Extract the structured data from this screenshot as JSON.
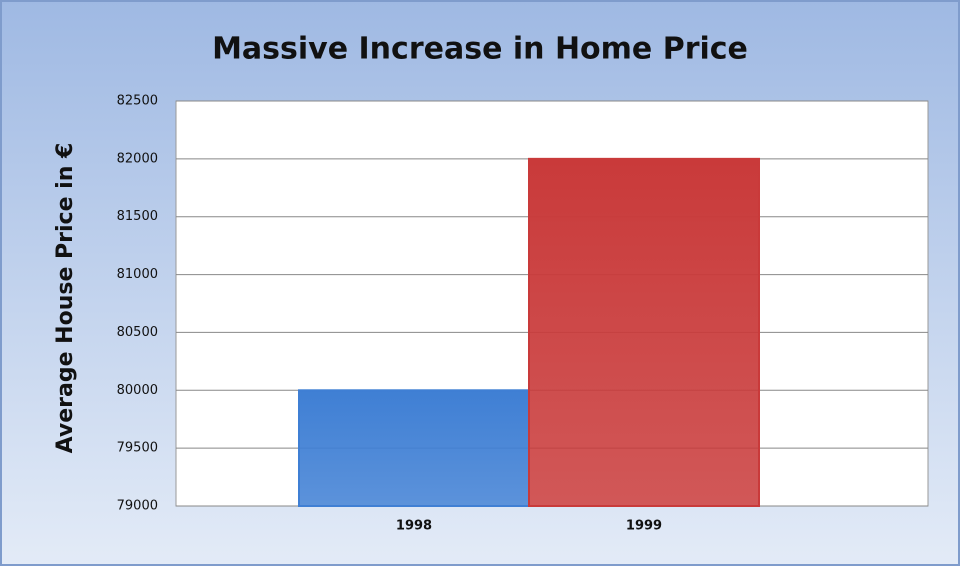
{
  "chart_data": {
    "type": "bar",
    "title": "Massive Increase in Home Price",
    "y_label": "Average House Price in €",
    "categories": [
      "1998",
      "1999"
    ],
    "values": [
      80000,
      82000
    ],
    "colors": [
      "#3f7fd4",
      "#c93a3a"
    ],
    "ylim": [
      79000,
      82500
    ],
    "yticks": [
      79000,
      79500,
      80000,
      80500,
      81000,
      81500,
      82000,
      82500
    ],
    "grid": true
  }
}
